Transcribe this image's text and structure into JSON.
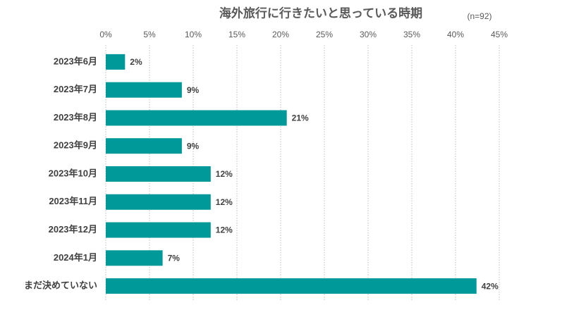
{
  "chart_data": {
    "type": "bar",
    "orientation": "horizontal",
    "title": "海外旅行に行きたいと思っている時期",
    "subtitle": "(n=92)",
    "categories": [
      "2023年6月",
      "2023年7月",
      "2023年8月",
      "2023年9月",
      "2023年10月",
      "2023年11月",
      "2023年12月",
      "2024年1月",
      "まだ決めていない"
    ],
    "values": [
      2.2,
      8.7,
      20.7,
      8.7,
      12.0,
      12.0,
      12.0,
      6.5,
      42.4
    ],
    "value_labels": [
      "2%",
      "9%",
      "21%",
      "9%",
      "12%",
      "12%",
      "12%",
      "7%",
      "42%"
    ],
    "color": "#009999",
    "xlim": [
      0,
      45
    ],
    "xticks": [
      {
        "value": 0,
        "label": "0%"
      },
      {
        "value": 5,
        "label": "5%"
      },
      {
        "value": 10,
        "label": "10%"
      },
      {
        "value": 15,
        "label": "15%"
      },
      {
        "value": 20,
        "label": "20%"
      },
      {
        "value": 25,
        "label": "25%"
      },
      {
        "value": 30,
        "label": "30%"
      },
      {
        "value": 35,
        "label": "35%"
      },
      {
        "value": 40,
        "label": "40%"
      },
      {
        "value": 45,
        "label": "45%"
      }
    ],
    "grid": true
  }
}
